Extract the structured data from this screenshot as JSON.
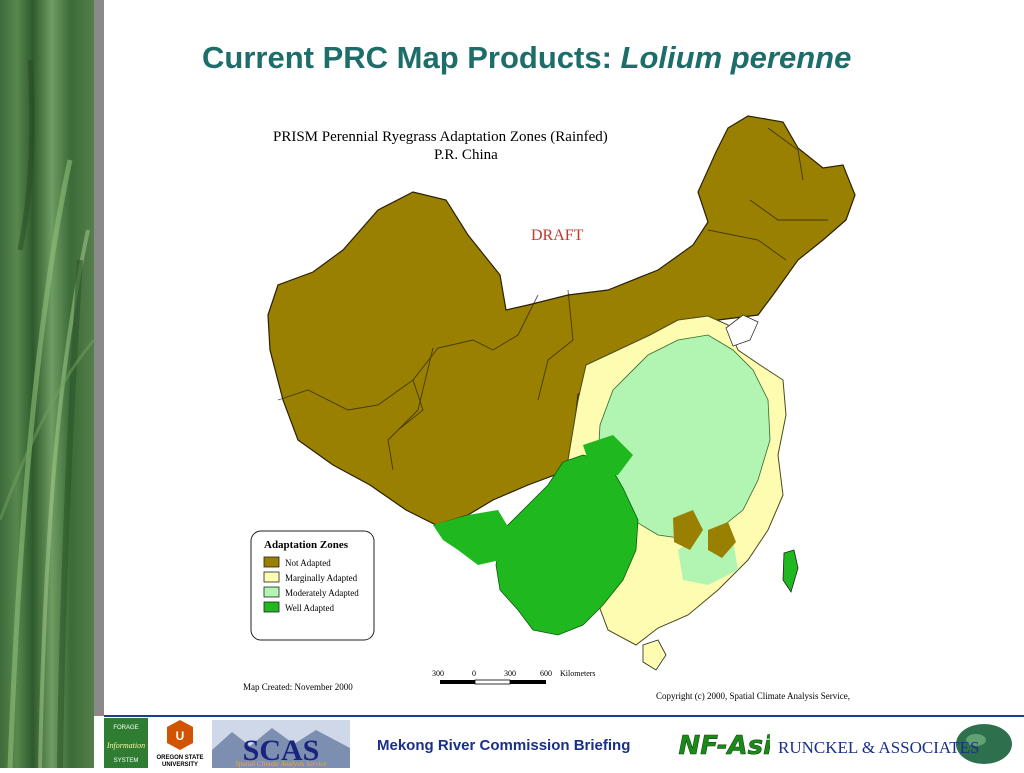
{
  "slide": {
    "title_prefix": "Current PRC Map Products: ",
    "title_species": "Lolium perenne"
  },
  "map": {
    "title_line1": "PRISM Perennial Ryegrass Adaptation Zones  (Rainfed)",
    "title_line2": "P.R. China",
    "draft_label": "DRAFT",
    "legend_title": "Adaptation Zones",
    "legend": [
      {
        "label": "Not Adapted",
        "color": "#9a8000"
      },
      {
        "label": "Marginally Adapted",
        "color": "#fdfcb0"
      },
      {
        "label": "Moderately Adapted",
        "color": "#b2f4b2"
      },
      {
        "label": "Well Adapted",
        "color": "#1fb81f"
      }
    ],
    "scale_ticks": [
      "300",
      "0",
      "300",
      "600"
    ],
    "scale_unit": "Kilometers",
    "created": "Map Created:  November 2000",
    "copyright": "Copyright (c) 2000, Spatial Climate Analysis Service,"
  },
  "footer": {
    "briefing": "Mekong River Commission Briefing",
    "fis_logo_text": [
      "FORAGE",
      "Information",
      "SYSTEM"
    ],
    "osu_logo_text": [
      "OREGON STATE",
      "UNIVERSITY"
    ],
    "scas_logo_text": "SCAS",
    "scas_logo_subtitle": "Spatial Climate Analysis Service",
    "anf_logo_text": "ANF-Asia",
    "runckel_logo_text": "RUNCKEL & ASSOCIATES"
  }
}
